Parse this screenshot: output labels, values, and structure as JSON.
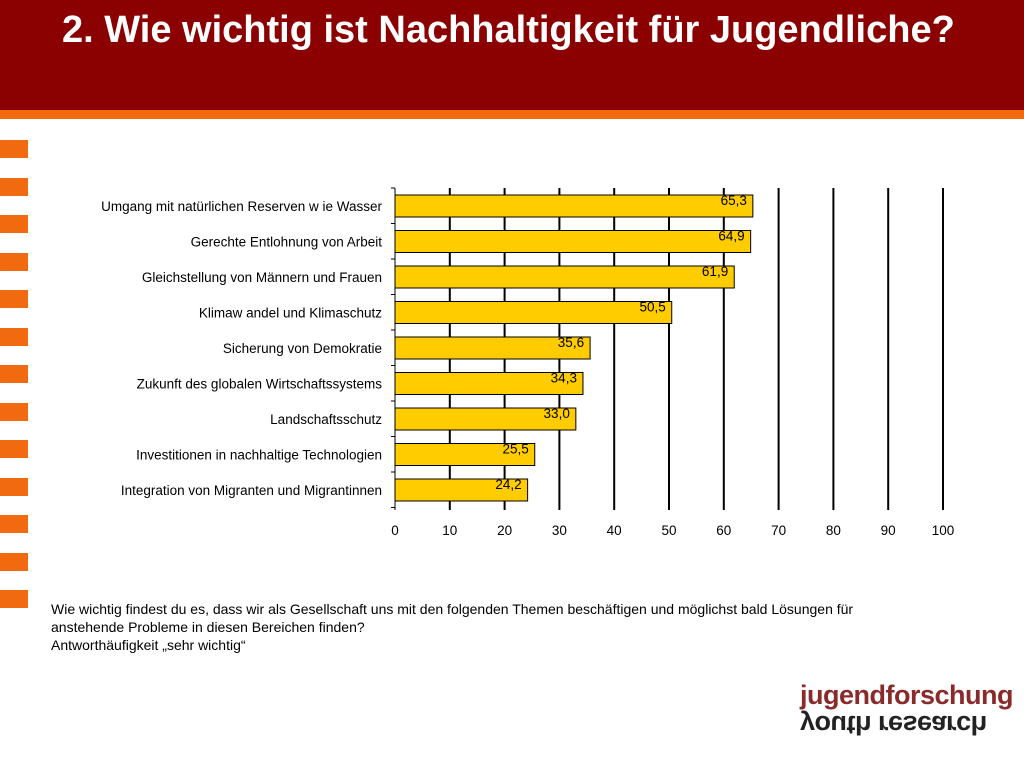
{
  "title": "2. Wie wichtig ist Nachhaltigkeit für Jugendliche?",
  "colors": {
    "header": "#8b0000",
    "accent": "#f26a10",
    "bar": "#ffcc00"
  },
  "caption": {
    "line1": "Wie wichtig findest du es, dass wir als Gesellschaft uns mit den folgenden Themen beschäftigen und möglichst bald Lösungen für",
    "line2": "anstehende Probleme in diesen Bereichen finden?",
    "line3": "Antworthäufigkeit „sehr wichtig“"
  },
  "logo": {
    "top": "jugendforschung",
    "bottom": "youth research"
  },
  "chart_data": {
    "type": "bar",
    "orientation": "horizontal",
    "categories": [
      "Umgang mit natürlichen Reserven w ie Wasser",
      "Gerechte Entlohnung von Arbeit",
      "Gleichstellung von Männern und Frauen",
      "Klimaw andel und Klimaschutz",
      "Sicherung von Demokratie",
      "Zukunft des globalen Wirtschaftssystems",
      "Landschaftsschutz",
      "Investitionen in nachhaltige Technologien",
      "Integration von Migranten und Migrantinnen"
    ],
    "values": [
      65.3,
      64.9,
      61.9,
      50.5,
      35.6,
      34.3,
      33.0,
      25.5,
      24.2
    ],
    "value_labels": [
      "65,3",
      "64,9",
      "61,9",
      "50,5",
      "35,6",
      "34,3",
      "33,0",
      "25,5",
      "24,2"
    ],
    "xlim": [
      0,
      100
    ],
    "ticks": [
      0,
      10,
      20,
      30,
      40,
      50,
      60,
      70,
      80,
      90,
      100
    ],
    "grid": true,
    "title": "",
    "xlabel": "",
    "ylabel": ""
  }
}
